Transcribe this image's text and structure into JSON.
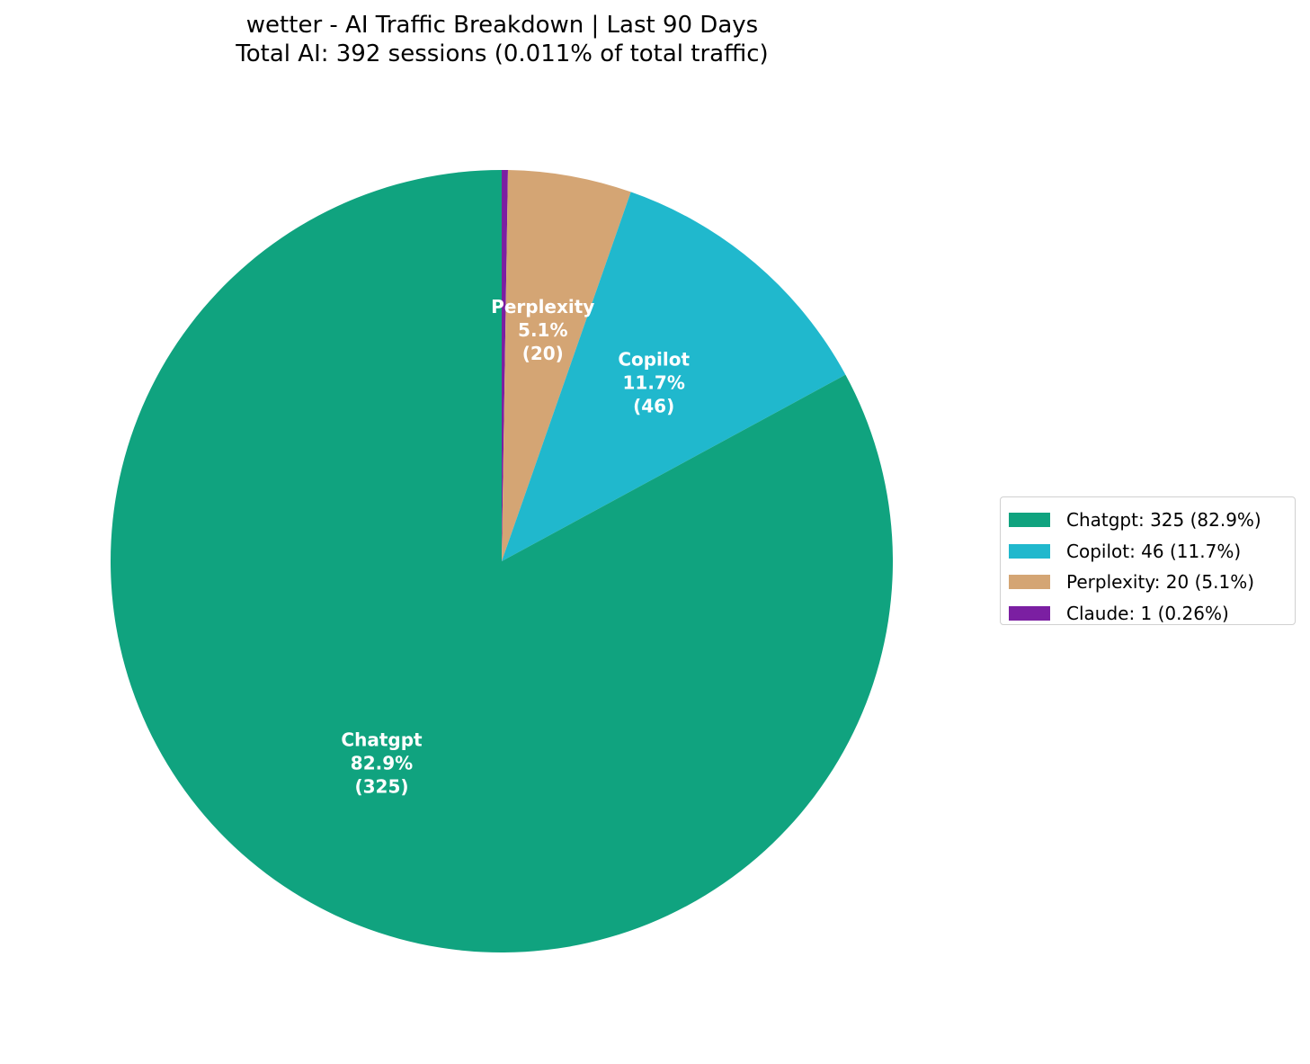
{
  "title": {
    "line1": "wetter - AI Traffic Breakdown | Last 90 Days",
    "line2": "Total AI: 392 sessions (0.011% of total traffic)"
  },
  "chart_data": {
    "type": "pie",
    "title": "wetter - AI Traffic Breakdown | Last 90 Days",
    "subtitle": "Total AI: 392 sessions (0.011% of total traffic)",
    "total": 392,
    "start_angle": "top (90°), clockwise",
    "legend_position": "right",
    "categories": [
      "Chatgpt",
      "Copilot",
      "Perplexity",
      "Claude"
    ],
    "values": [
      325,
      46,
      20,
      1
    ],
    "percentages": [
      82.9,
      11.7,
      5.1,
      0.26
    ],
    "colors": [
      "#10a37f",
      "#20b8cd",
      "#d4a574",
      "#7b1fa2"
    ],
    "slice_labels": [
      {
        "name": "Chatgpt",
        "pct": "82.9%",
        "count": "(325)"
      },
      {
        "name": "Copilot",
        "pct": "11.7%",
        "count": "(46)"
      },
      {
        "name": "Perplexity",
        "pct": "5.1%",
        "count": "(20)"
      },
      {
        "name": "Claude",
        "pct": "",
        "count": ""
      }
    ],
    "legend": [
      "Chatgpt: 325 (82.9%)",
      "Copilot: 46 (11.7%)",
      "Perplexity: 20 (5.1%)",
      "Claude: 1 (0.26%)"
    ]
  }
}
